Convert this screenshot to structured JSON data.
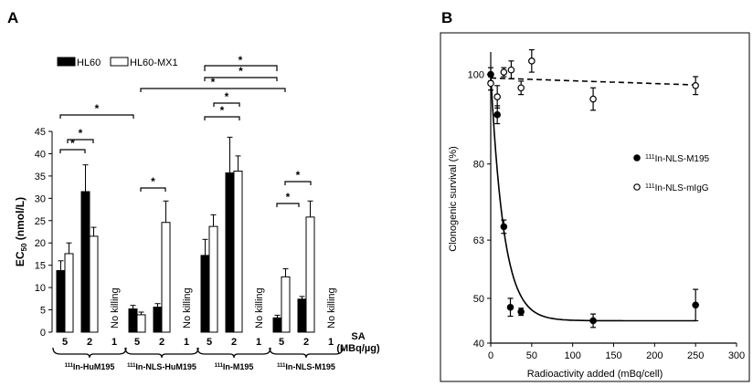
{
  "colors": {
    "ink": "#000000",
    "open_fill": "#ffffff",
    "background": "#ffffff"
  },
  "chart_data": [
    {
      "panel": "A",
      "type": "bar",
      "ylabel_main": "EC",
      "ylabel_sub": "50",
      "ylabel_unit": " (nmol/L)",
      "ylim": [
        0,
        45
      ],
      "yticks": [
        0,
        5,
        10,
        15,
        20,
        25,
        30,
        35,
        40,
        45
      ],
      "legend": [
        {
          "name": "HL60",
          "fill": "#000000"
        },
        {
          "name": "HL60-MX1",
          "fill": "#ffffff"
        }
      ],
      "sa_label": "SA",
      "sa_unit": "(MBq/µg)",
      "no_killing_label": "No killing",
      "significance_label": "*",
      "groups": [
        {
          "name_sup": "111",
          "name_rest": "In-HuM195",
          "sa_levels": [
            "5",
            "2",
            "1"
          ],
          "HL60": [
            13.8,
            31.5,
            null
          ],
          "HL60_err": [
            2.2,
            6.0,
            null
          ],
          "HL60_MX1": [
            17.6,
            21.5,
            null
          ],
          "HL60_MX1_err": [
            2.4,
            2.0,
            null
          ]
        },
        {
          "name_sup": "111",
          "name_rest": "In-NLS-HuM195",
          "sa_levels": [
            "5",
            "2",
            "1"
          ],
          "HL60": [
            5.2,
            5.6,
            null
          ],
          "HL60_err": [
            0.8,
            0.8,
            null
          ],
          "HL60_MX1": [
            3.9,
            24.6,
            null
          ],
          "HL60_MX1_err": [
            0.6,
            4.8,
            null
          ]
        },
        {
          "name_sup": "111",
          "name_rest": "In-M195",
          "sa_levels": [
            "5",
            "2",
            "1"
          ],
          "HL60": [
            17.2,
            35.7,
            null
          ],
          "HL60_err": [
            3.6,
            8.0,
            null
          ],
          "HL60_MX1": [
            23.7,
            36.1,
            null
          ],
          "HL60_MX1_err": [
            2.6,
            3.4,
            null
          ]
        },
        {
          "name_sup": "111",
          "name_rest": "In-NLS-M195",
          "sa_levels": [
            "5",
            "2",
            "1"
          ],
          "HL60": [
            3.2,
            7.4,
            null
          ],
          "HL60_err": [
            0.6,
            0.6,
            null
          ],
          "HL60_MX1": [
            12.4,
            25.8,
            null
          ],
          "HL60_MX1_err": [
            1.8,
            3.6,
            null
          ]
        }
      ]
    },
    {
      "panel": "B",
      "type": "scatter",
      "xlabel": "Radioactivity added (mBq/cell)",
      "ylabel": "Clonogenic survival (%)",
      "xlim": [
        0,
        300
      ],
      "xticks": [
        0,
        50,
        100,
        150,
        200,
        250,
        300
      ],
      "ylim": [
        40,
        105
      ],
      "yticks": [
        40,
        50,
        63,
        80,
        100
      ],
      "series": [
        {
          "name_sup": "111",
          "name_rest": "In-NLS-M195",
          "marker": "filled",
          "fit": "solid",
          "x": [
            0,
            8,
            16,
            24,
            37,
            125,
            250
          ],
          "y": [
            100,
            91,
            66,
            48,
            47,
            45,
            48.5
          ],
          "err": [
            1.5,
            2.0,
            1.5,
            2.0,
            0.8,
            1.5,
            3.5
          ]
        },
        {
          "name_sup": "111",
          "name_rest": "In-NLS-mIgG",
          "marker": "open",
          "fit": "dashed",
          "x": [
            0,
            8,
            16,
            25,
            37,
            50,
            125,
            250
          ],
          "y": [
            98,
            95,
            100.5,
            101,
            97,
            103,
            94.5,
            97.5
          ],
          "err": [
            1.5,
            2.5,
            1.0,
            2.0,
            1.5,
            2.5,
            2.5,
            2.0
          ]
        }
      ]
    }
  ]
}
